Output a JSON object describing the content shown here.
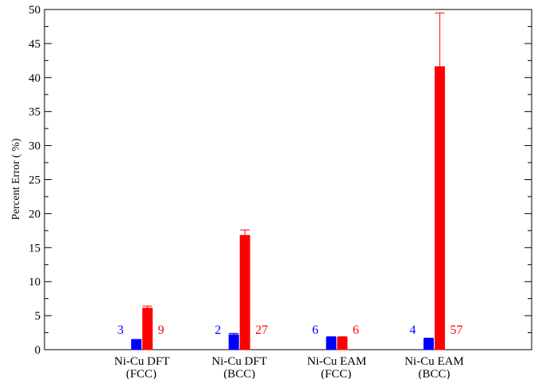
{
  "chart_data": {
    "type": "bar",
    "title": "",
    "xlabel": "",
    "ylabel": "Percent Error ( %)",
    "ylim": [
      0,
      50
    ],
    "yticks": [
      0,
      5,
      10,
      15,
      20,
      25,
      30,
      35,
      40,
      45,
      50
    ],
    "grid": false,
    "categories": [
      [
        "Ni-Cu DFT",
        "(FCC)"
      ],
      [
        "Ni-Cu DFT",
        "(BCC)"
      ],
      [
        "Ni-Cu EAM",
        "(FCC)"
      ],
      [
        "Ni-Cu EAM",
        "(BCC)"
      ]
    ],
    "series": [
      {
        "color": "#0000ff",
        "values": [
          1.5,
          2.2,
          1.8,
          1.6
        ],
        "errors": [
          0.0,
          0.2,
          0.1,
          0.1
        ],
        "labels": [
          "3",
          "2",
          "6",
          "4"
        ]
      },
      {
        "color": "#ff0000",
        "values": [
          6.1,
          16.8,
          1.8,
          41.6
        ],
        "errors": [
          0.3,
          0.8,
          0.1,
          7.9
        ],
        "labels": [
          "9",
          "27",
          "6",
          "57"
        ]
      }
    ]
  }
}
